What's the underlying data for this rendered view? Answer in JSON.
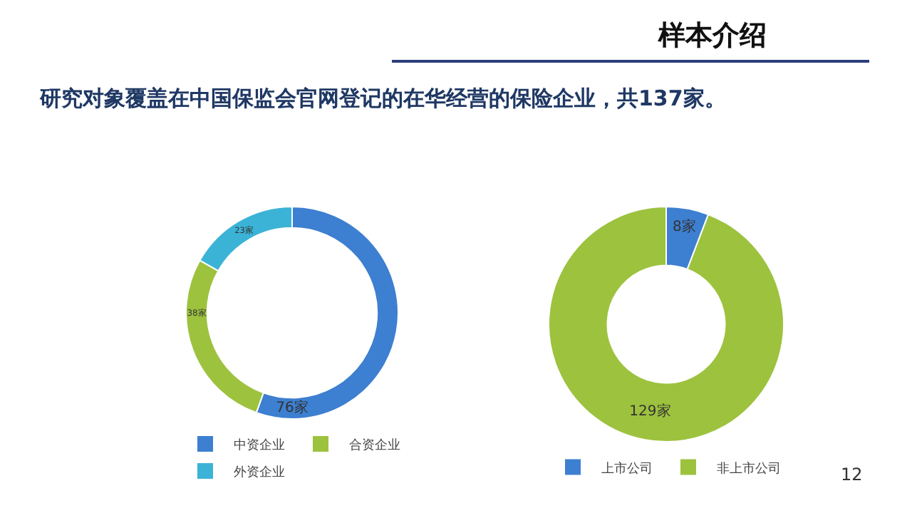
{
  "chart_data": [
    {
      "type": "donut",
      "subtitle": "研究对象覆盖在中国保监会官网登记的在华经营的保险企业，共137家。",
      "categories": [
        "中资企业",
        "合资企业",
        "外资企业"
      ],
      "values": [
        76,
        38,
        23
      ],
      "colors": [
        "#3d7fd0",
        "#9dc23e",
        "#3bb3d6"
      ],
      "value_labels": [
        "76家",
        "38家",
        "23家"
      ],
      "legend": "bottom"
    },
    {
      "type": "donut",
      "title": "样本介绍",
      "categories": [
        "上市公司",
        "非上市公司"
      ],
      "values": [
        8,
        129
      ],
      "colors": [
        "#3d7fd0",
        "#9dc23e"
      ],
      "value_labels": [
        "8家",
        "129家"
      ],
      "legend": "bottom",
      "annotations": [
        "12"
      ]
    }
  ]
}
